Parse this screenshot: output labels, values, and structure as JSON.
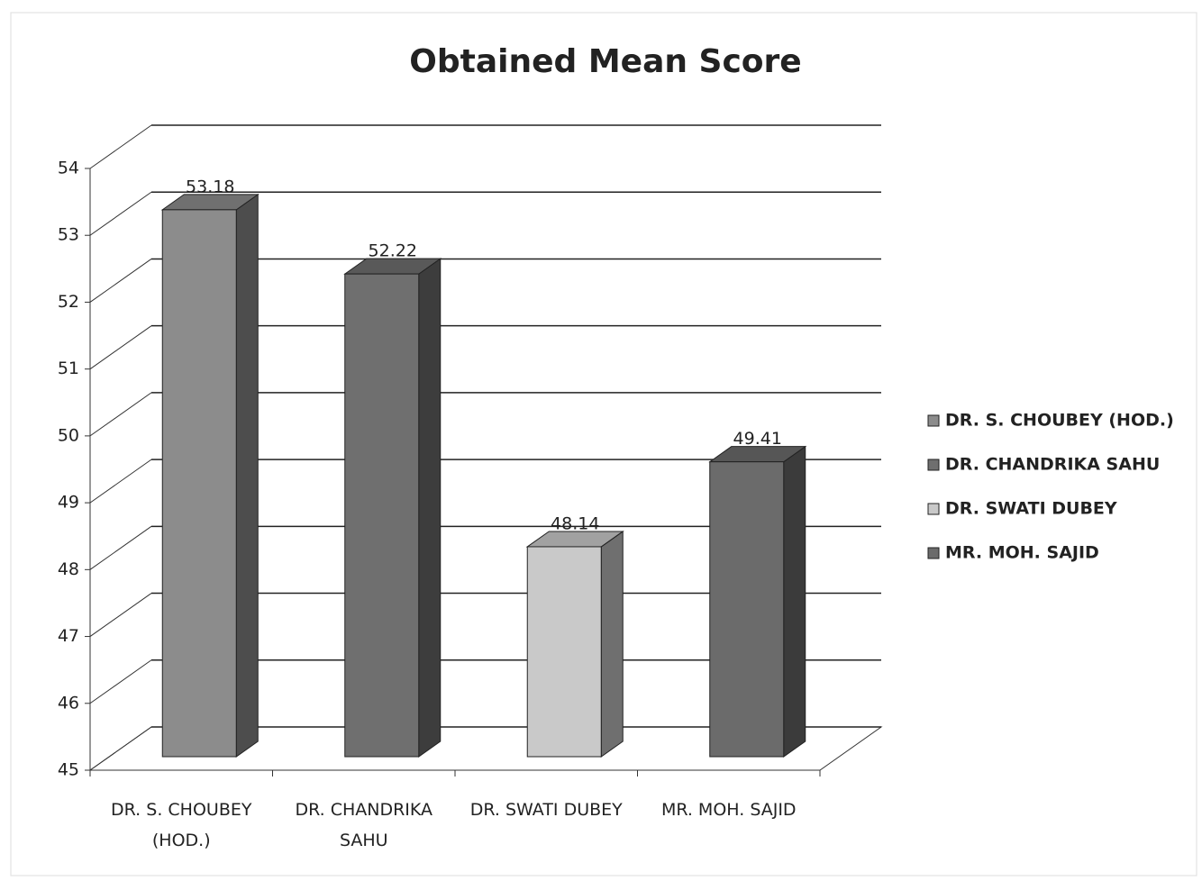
{
  "chart_data": {
    "type": "bar3d",
    "title": "Obtained Mean Score",
    "categories": [
      "DR. S. CHOUBEY (HOD.)",
      "DR. CHANDRIKA SAHU",
      "DR. SWATI DUBEY",
      "MR. MOH. SAJID"
    ],
    "values": [
      53.18,
      52.22,
      48.14,
      49.41
    ],
    "colors": [
      "#8c8c8c",
      "#6f6f6f",
      "#c9c9c9",
      "#6b6b6b"
    ],
    "ylim": [
      45,
      54
    ],
    "yticks": [
      45,
      46,
      47,
      48,
      49,
      50,
      51,
      52,
      53,
      54
    ],
    "grid": true,
    "legend": "right"
  }
}
